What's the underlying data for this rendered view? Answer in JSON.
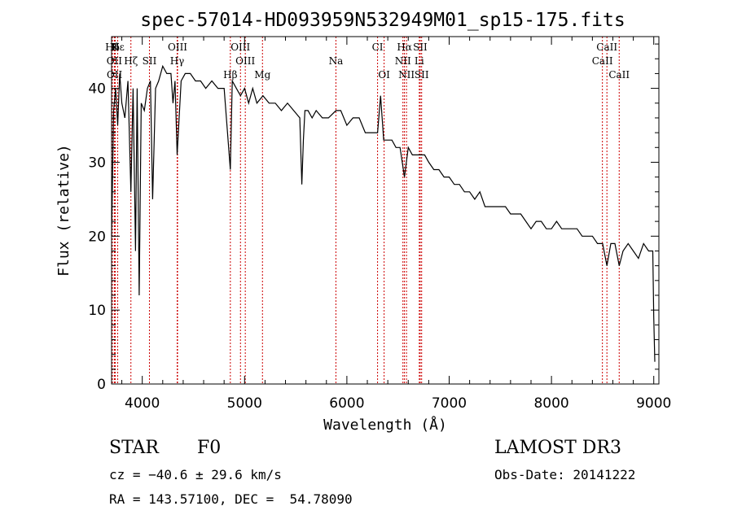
{
  "chart_data": {
    "type": "line",
    "title": "spec-57014-HD093959N532949M01_sp15-175.fits",
    "xlabel": "Wavelength (Å)",
    "ylabel": "Flux (relative)",
    "xlim": [
      3700,
      9050
    ],
    "ylim": [
      0,
      47
    ],
    "xticks": [
      4000,
      5000,
      6000,
      7000,
      8000,
      9000
    ],
    "yticks": [
      0,
      10,
      20,
      30,
      40
    ],
    "xtick_labels": [
      "4000",
      "5000",
      "6000",
      "7000",
      "8000",
      "9000"
    ],
    "ytick_labels": [
      "0",
      "10",
      "20",
      "30",
      "40"
    ],
    "series": [
      {
        "name": "spectrum",
        "x": [
          3700,
          3720,
          3740,
          3760,
          3780,
          3800,
          3830,
          3860,
          3889,
          3910,
          3934,
          3950,
          3970,
          3990,
          4020,
          4050,
          4080,
          4101,
          4130,
          4160,
          4200,
          4240,
          4280,
          4300,
          4320,
          4341,
          4380,
          4420,
          4470,
          4520,
          4570,
          4620,
          4680,
          4740,
          4800,
          4861,
          4880,
          4920,
          4960,
          5000,
          5040,
          5080,
          5120,
          5180,
          5240,
          5300,
          5360,
          5420,
          5480,
          5540,
          5560,
          5575,
          5590,
          5620,
          5660,
          5700,
          5760,
          5820,
          5893,
          5940,
          6000,
          6060,
          6120,
          6180,
          6240,
          6300,
          6330,
          6360,
          6400,
          6440,
          6480,
          6520,
          6563,
          6600,
          6640,
          6680,
          6720,
          6760,
          6800,
          6850,
          6900,
          6950,
          7000,
          7050,
          7100,
          7150,
          7200,
          7250,
          7300,
          7350,
          7400,
          7450,
          7500,
          7550,
          7600,
          7650,
          7700,
          7750,
          7800,
          7850,
          7900,
          7950,
          8000,
          8050,
          8100,
          8150,
          8200,
          8250,
          8300,
          8350,
          8400,
          8450,
          8500,
          8542,
          8580,
          8620,
          8662,
          8700,
          8750,
          8800,
          8850,
          8900,
          8950,
          8990,
          9000,
          9010
        ],
        "y": [
          20,
          37,
          40,
          35,
          42,
          38,
          36,
          41,
          26,
          40,
          18,
          40,
          12,
          38,
          37,
          40,
          41,
          25,
          40,
          41,
          43,
          42,
          42,
          38,
          41,
          31,
          41,
          42,
          42,
          41,
          41,
          40,
          41,
          40,
          40,
          29,
          41,
          40,
          39,
          40,
          38,
          40,
          38,
          39,
          38,
          38,
          37,
          38,
          37,
          36,
          27,
          33,
          37,
          37,
          36,
          37,
          36,
          36,
          37,
          37,
          35,
          36,
          36,
          34,
          34,
          34,
          39,
          33,
          33,
          33,
          32,
          32,
          28,
          32,
          31,
          31,
          31,
          31,
          30,
          29,
          29,
          28,
          28,
          27,
          27,
          26,
          26,
          25,
          26,
          24,
          24,
          24,
          24,
          24,
          23,
          23,
          23,
          22,
          21,
          22,
          22,
          21,
          21,
          22,
          21,
          21,
          21,
          21,
          20,
          20,
          20,
          19,
          19,
          16,
          19,
          19,
          16,
          18,
          19,
          18,
          17,
          19,
          18,
          18,
          9,
          3
        ]
      }
    ],
    "lines": [
      {
        "name": "Hδ",
        "x": 3708,
        "row": 0
      },
      {
        "name": "K",
        "x": 3736,
        "row": 0
      },
      {
        "name": "Hε",
        "x": 3760,
        "row": 0
      },
      {
        "name": "OIII",
        "x": 4345,
        "row": 0
      },
      {
        "name": "OIII",
        "x": 4960,
        "row": 0
      },
      {
        "name": "CI",
        "x": 6300,
        "row": 0
      },
      {
        "name": "Hα",
        "x": 6563,
        "row": 0
      },
      {
        "name": "SII",
        "x": 6717,
        "row": 0
      },
      {
        "name": "CaII",
        "x": 8542,
        "row": 0
      },
      {
        "name": "OII",
        "x": 3727,
        "row": 1
      },
      {
        "name": "Hζ",
        "x": 3889,
        "row": 1
      },
      {
        "name": "SII",
        "x": 4070,
        "row": 1
      },
      {
        "name": "Hγ",
        "x": 4341,
        "row": 1
      },
      {
        "name": "OIII",
        "x": 5007,
        "row": 1
      },
      {
        "name": "Na",
        "x": 5893,
        "row": 1
      },
      {
        "name": "NII",
        "x": 6548,
        "row": 1
      },
      {
        "name": "Li",
        "x": 6708,
        "row": 1
      },
      {
        "name": "CaII",
        "x": 8498,
        "row": 1
      },
      {
        "name": "OII",
        "x": 3729,
        "row": 2
      },
      {
        "name": "Hβ",
        "x": 4861,
        "row": 2
      },
      {
        "name": "Mg",
        "x": 5175,
        "row": 2
      },
      {
        "name": "OI",
        "x": 6364,
        "row": 2
      },
      {
        "name": "NII",
        "x": 6583,
        "row": 2
      },
      {
        "name": "SII",
        "x": 6731,
        "row": 2
      },
      {
        "name": "CaII",
        "x": 8662,
        "row": 2
      }
    ]
  },
  "footer": {
    "object_type": "STAR",
    "subclass": "F0",
    "survey": "LAMOST DR3",
    "cz": "cz = −40.6 ± 29.6 km/s",
    "obs_date": "Obs-Date: 20141222",
    "coords": "RA = 143.57100, DEC =  54.78090"
  },
  "colors": {
    "spectrum": "#000000",
    "line_marker": "#cc0000"
  }
}
